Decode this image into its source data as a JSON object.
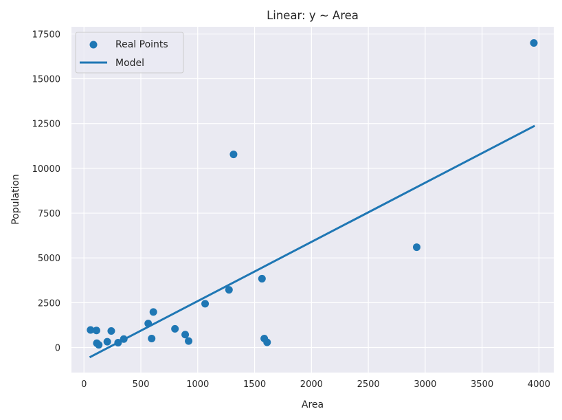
{
  "chart_data": {
    "type": "scatter",
    "title": "Linear: y ~ Area",
    "xlabel": "Area",
    "ylabel": "Population",
    "xlim": [
      -110,
      4130
    ],
    "ylim": [
      -1400,
      17900
    ],
    "xticks": [
      0,
      500,
      1000,
      1500,
      2000,
      2500,
      3000,
      3500,
      4000
    ],
    "yticks": [
      0,
      2500,
      5000,
      7500,
      10000,
      12500,
      15000,
      17500
    ],
    "grid": true,
    "legend_position": "top-left",
    "colors": {
      "points": "#1f77b4",
      "line": "#1f77b4",
      "plot_bg": "#eaeaf2",
      "grid": "#ffffff"
    },
    "series": [
      {
        "name": "Real Points",
        "type": "scatter",
        "points": [
          {
            "x": 58,
            "y": 980
          },
          {
            "x": 110,
            "y": 950
          },
          {
            "x": 113,
            "y": 240
          },
          {
            "x": 130,
            "y": 150
          },
          {
            "x": 205,
            "y": 320
          },
          {
            "x": 240,
            "y": 920
          },
          {
            "x": 300,
            "y": 270
          },
          {
            "x": 350,
            "y": 470
          },
          {
            "x": 565,
            "y": 1340
          },
          {
            "x": 595,
            "y": 500
          },
          {
            "x": 610,
            "y": 1980
          },
          {
            "x": 800,
            "y": 1040
          },
          {
            "x": 890,
            "y": 720
          },
          {
            "x": 920,
            "y": 360
          },
          {
            "x": 1065,
            "y": 2440
          },
          {
            "x": 1275,
            "y": 3220
          },
          {
            "x": 1315,
            "y": 10780
          },
          {
            "x": 1565,
            "y": 3840
          },
          {
            "x": 1585,
            "y": 500
          },
          {
            "x": 1610,
            "y": 290
          },
          {
            "x": 2925,
            "y": 5600
          },
          {
            "x": 3955,
            "y": 17000
          }
        ]
      },
      {
        "name": "Model",
        "type": "line",
        "points": [
          {
            "x": 58,
            "y": -520
          },
          {
            "x": 3955,
            "y": 12350
          }
        ]
      }
    ]
  }
}
